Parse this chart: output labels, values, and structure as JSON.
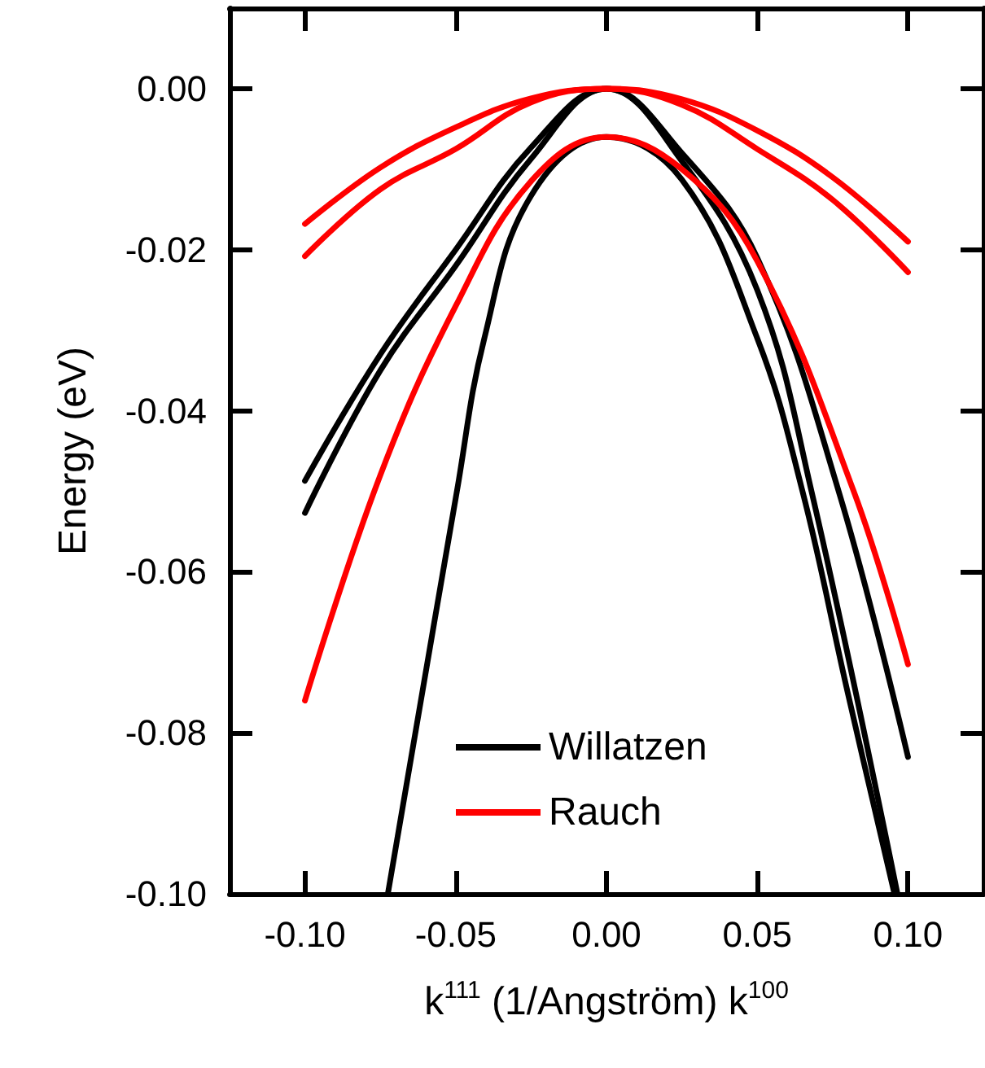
{
  "chart_data": {
    "type": "line",
    "xlabel": "k$^{111}$ (1/Angström) k$^{100}$",
    "ylabel": "Energy (eV)",
    "xlim": [
      -0.125,
      0.125
    ],
    "ylim": [
      -0.1,
      0.01
    ],
    "xticks": [
      {
        "value": -0.1,
        "label": "-0.10"
      },
      {
        "value": -0.05,
        "label": "-0.05"
      },
      {
        "value": 0,
        "label": "0.00"
      },
      {
        "value": 0.05,
        "label": "0.05"
      },
      {
        "value": 0.1,
        "label": "0.10"
      }
    ],
    "yticks": [
      {
        "value": -0.1,
        "label": "-0.10"
      },
      {
        "value": -0.08,
        "label": "-0.08"
      },
      {
        "value": -0.06,
        "label": "-0.06"
      },
      {
        "value": -0.04,
        "label": "-0.04"
      },
      {
        "value": -0.02,
        "label": "-0.02"
      },
      {
        "value": 0,
        "label": "0.00"
      }
    ],
    "legend": "bottom",
    "grid": false,
    "marker": "none",
    "line_style": "solid",
    "series": [
      {
        "name": "Willatzen",
        "color": "#000000",
        "x": [
          -0.1,
          -0.075,
          -0.05,
          -0.025,
          0,
          0.025,
          0.05,
          0.077,
          0.1
        ],
        "values": [
          -0.0487,
          -0.033,
          -0.02,
          -0.0073,
          0,
          -0.008,
          -0.021,
          -0.05,
          -0.083
        ]
      },
      {
        "color": "#000000",
        "x": [
          -0.1,
          -0.075,
          -0.05,
          -0.025,
          0,
          0.025,
          0.05,
          0.068,
          0.0965
        ],
        "values": [
          -0.0527,
          -0.035,
          -0.022,
          -0.0087,
          0,
          -0.009,
          -0.025,
          -0.05,
          -0.1
        ]
      },
      {
        "color": "#000000",
        "x": [
          -0.0725,
          -0.0496,
          -0.0405,
          -0.025,
          0,
          0.025,
          0.05,
          0.065,
          0.08,
          0.0955
        ],
        "values": [
          -0.1,
          -0.05,
          -0.031,
          -0.0133,
          -0.006,
          -0.0113,
          -0.031,
          -0.05,
          -0.075,
          -0.1
        ]
      },
      {
        "name": "Rauch",
        "color": "#ff0000",
        "x": [
          -0.1,
          -0.075,
          -0.05,
          -0.025,
          0,
          0.025,
          0.05,
          0.075,
          0.1
        ],
        "values": [
          -0.0168,
          -0.0098,
          -0.0048,
          -0.0012,
          0,
          -0.0013,
          -0.0052,
          -0.011,
          -0.019
        ]
      },
      {
        "color": "#ff0000",
        "x": [
          -0.1,
          -0.075,
          -0.05,
          -0.025,
          0,
          0.025,
          0.05,
          0.075,
          0.1
        ],
        "values": [
          -0.0208,
          -0.0125,
          -0.0075,
          -0.0017,
          0,
          -0.002,
          -0.0075,
          -0.0138,
          -0.0228
        ]
      },
      {
        "color": "#ff0000",
        "x": [
          -0.1,
          -0.075,
          -0.05,
          -0.025,
          0,
          0.025,
          0.05,
          0.082,
          0.1
        ],
        "values": [
          -0.076,
          -0.048,
          -0.027,
          -0.0115,
          -0.006,
          -0.01,
          -0.0214,
          -0.05,
          -0.0715
        ]
      }
    ]
  }
}
